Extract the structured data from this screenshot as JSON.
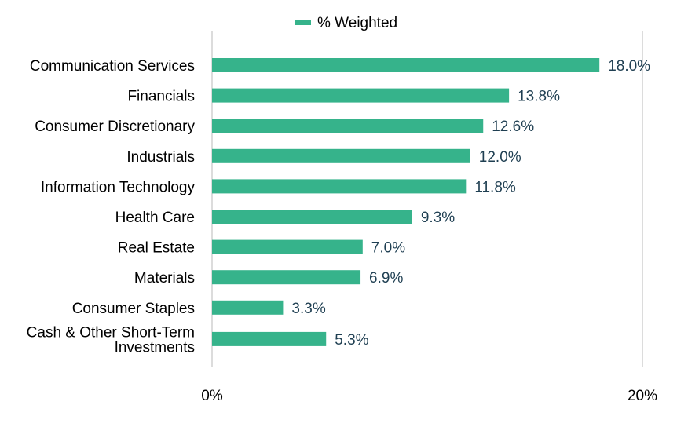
{
  "chart_data": {
    "type": "bar",
    "orientation": "horizontal",
    "categories": [
      [
        "Communication Services"
      ],
      [
        "Financials"
      ],
      [
        "Consumer Discretionary"
      ],
      [
        "Industrials"
      ],
      [
        "Information Technology"
      ],
      [
        "Health Care"
      ],
      [
        "Real Estate"
      ],
      [
        "Materials"
      ],
      [
        "Consumer Staples"
      ],
      [
        "Cash & Other Short-Term",
        "Investments"
      ]
    ],
    "series": [
      {
        "name": "% Weighted",
        "values": [
          18.0,
          13.8,
          12.6,
          12.0,
          11.8,
          9.3,
          7.0,
          6.9,
          3.3,
          5.3
        ],
        "data_labels": [
          "18.0%",
          "13.8%",
          "12.6%",
          "12.0%",
          "11.8%",
          "9.3%",
          "7.0%",
          "6.9%",
          "3.3%",
          "5.3%"
        ]
      }
    ],
    "xlim": [
      0,
      20
    ],
    "x_ticks": [
      {
        "value": 0,
        "label": "0%"
      },
      {
        "value": 20,
        "label": "20%"
      }
    ],
    "legend_position": "top-center",
    "grid": false,
    "colors": {
      "bar": "#36b38b",
      "value_label": "#1f3f52",
      "axis_line": "#d0d0d0",
      "text": "#000000"
    }
  }
}
